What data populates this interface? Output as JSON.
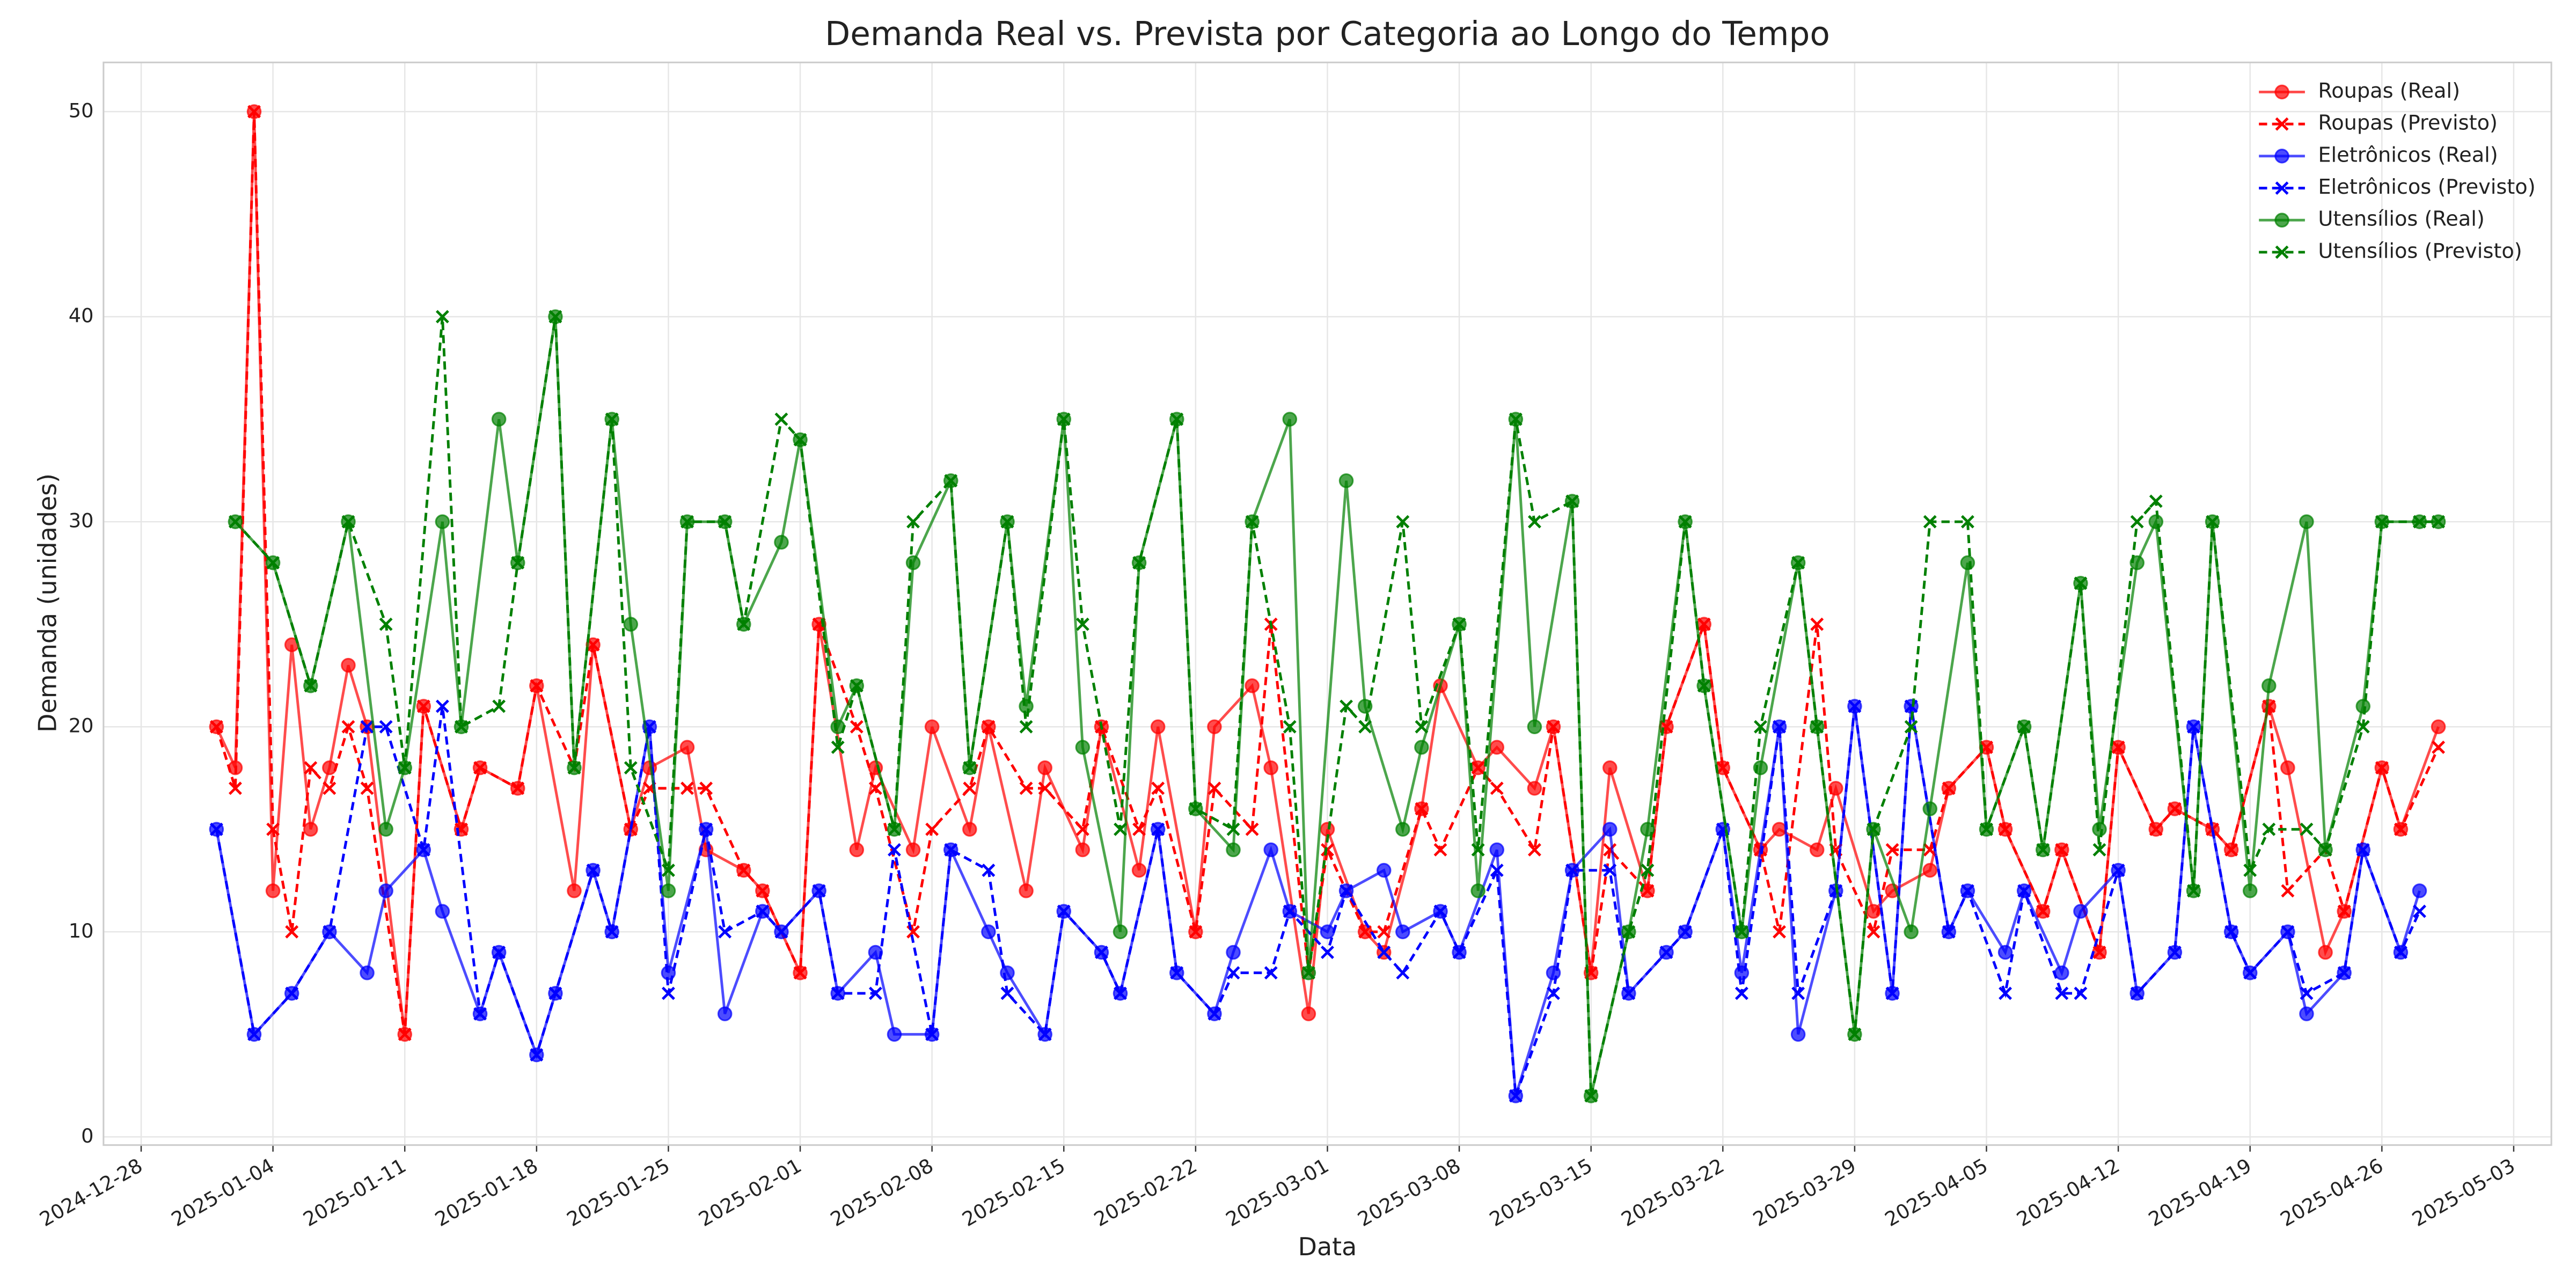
{
  "chart_data": {
    "type": "line",
    "title": "Demanda Real vs. Prevista por Categoria ao Longo do Tempo",
    "x_label": "Data",
    "y_label": "Demanda (unidades)",
    "xlim": [
      "2024-12-26",
      "2025-05-05"
    ],
    "xticks": [
      "2024-12-28",
      "2025-01-04",
      "2025-01-11",
      "2025-01-18",
      "2025-01-25",
      "2025-02-01",
      "2025-02-08",
      "2025-02-15",
      "2025-02-22",
      "2025-03-01",
      "2025-03-08",
      "2025-03-15",
      "2025-03-22",
      "2025-03-29",
      "2025-04-05",
      "2025-04-12",
      "2025-04-19",
      "2025-04-26",
      "2025-05-03"
    ],
    "ylim": [
      -0.4,
      52.4
    ],
    "yticks": [
      0,
      10,
      20,
      30,
      40,
      50
    ],
    "grid": true,
    "legend": "upper right",
    "series": [
      {
        "name": "Roupas (Real)",
        "color": "#ff0000",
        "linestyle": "solid",
        "marker": "o",
        "x": [
          "2025-01-01",
          "2025-01-02",
          "2025-01-03",
          "2025-01-04",
          "2025-01-05",
          "2025-01-06",
          "2025-01-07",
          "2025-01-08",
          "2025-01-09",
          "2025-01-11",
          "2025-01-12",
          "2025-01-14",
          "2025-01-15",
          "2025-01-17",
          "2025-01-18",
          "2025-01-20",
          "2025-01-21",
          "2025-01-23",
          "2025-01-24",
          "2025-01-26",
          "2025-01-27",
          "2025-01-29",
          "2025-01-30",
          "2025-02-01",
          "2025-02-02",
          "2025-02-04",
          "2025-02-05",
          "2025-02-07",
          "2025-02-08",
          "2025-02-10",
          "2025-02-11",
          "2025-02-13",
          "2025-02-14",
          "2025-02-16",
          "2025-02-17",
          "2025-02-19",
          "2025-02-20",
          "2025-02-22",
          "2025-02-23",
          "2025-02-25",
          "2025-02-26",
          "2025-02-28",
          "2025-03-01",
          "2025-03-03",
          "2025-03-04",
          "2025-03-06",
          "2025-03-07",
          "2025-03-09",
          "2025-03-10",
          "2025-03-12",
          "2025-03-13",
          "2025-03-15",
          "2025-03-16",
          "2025-03-18",
          "2025-03-19",
          "2025-03-21",
          "2025-03-22",
          "2025-03-24",
          "2025-03-25",
          "2025-03-27",
          "2025-03-28",
          "2025-03-30",
          "2025-03-31",
          "2025-04-02",
          "2025-04-03",
          "2025-04-05",
          "2025-04-06",
          "2025-04-08",
          "2025-04-09",
          "2025-04-11",
          "2025-04-12",
          "2025-04-14",
          "2025-04-15",
          "2025-04-17",
          "2025-04-18",
          "2025-04-20",
          "2025-04-21",
          "2025-04-23",
          "2025-04-24",
          "2025-04-26",
          "2025-04-27",
          "2025-04-29"
        ],
        "values": [
          20,
          18,
          50,
          12,
          24,
          15,
          18,
          23,
          20,
          5,
          21,
          15,
          18,
          17,
          22,
          12,
          24,
          15,
          18,
          19,
          14,
          13,
          12,
          8,
          25,
          14,
          18,
          14,
          20,
          15,
          20,
          12,
          18,
          14,
          20,
          13,
          20,
          10,
          20,
          22,
          18,
          6,
          15,
          10,
          9,
          16,
          22,
          18,
          19,
          17,
          20,
          8,
          18,
          12,
          20,
          25,
          18,
          14,
          15,
          14,
          17,
          11,
          12,
          13,
          17,
          19,
          15,
          11,
          14,
          9,
          19,
          15,
          16,
          15,
          14,
          21,
          18,
          9,
          11,
          18,
          15,
          20
        ]
      },
      {
        "name": "Roupas (Previsto)",
        "color": "#ff0000",
        "linestyle": "dashed",
        "marker": "x",
        "x": [
          "2025-01-01",
          "2025-01-02",
          "2025-01-03",
          "2025-01-04",
          "2025-01-05",
          "2025-01-06",
          "2025-01-07",
          "2025-01-08",
          "2025-01-09",
          "2025-01-11",
          "2025-01-12",
          "2025-01-14",
          "2025-01-15",
          "2025-01-17",
          "2025-01-18",
          "2025-01-20",
          "2025-01-21",
          "2025-01-23",
          "2025-01-24",
          "2025-01-26",
          "2025-01-27",
          "2025-01-29",
          "2025-01-30",
          "2025-02-01",
          "2025-02-02",
          "2025-02-04",
          "2025-02-05",
          "2025-02-07",
          "2025-02-08",
          "2025-02-10",
          "2025-02-11",
          "2025-02-13",
          "2025-02-14",
          "2025-02-16",
          "2025-02-17",
          "2025-02-19",
          "2025-02-20",
          "2025-02-22",
          "2025-02-23",
          "2025-02-25",
          "2025-02-26",
          "2025-02-28",
          "2025-03-01",
          "2025-03-03",
          "2025-03-04",
          "2025-03-06",
          "2025-03-07",
          "2025-03-09",
          "2025-03-10",
          "2025-03-12",
          "2025-03-13",
          "2025-03-15",
          "2025-03-16",
          "2025-03-18",
          "2025-03-19",
          "2025-03-21",
          "2025-03-22",
          "2025-03-24",
          "2025-03-25",
          "2025-03-27",
          "2025-03-28",
          "2025-03-30",
          "2025-03-31",
          "2025-04-02",
          "2025-04-03",
          "2025-04-05",
          "2025-04-06",
          "2025-04-08",
          "2025-04-09",
          "2025-04-11",
          "2025-04-12",
          "2025-04-14",
          "2025-04-15",
          "2025-04-17",
          "2025-04-18",
          "2025-04-20",
          "2025-04-21",
          "2025-04-23",
          "2025-04-24",
          "2025-04-26",
          "2025-04-27",
          "2025-04-29"
        ],
        "values": [
          20,
          17,
          50,
          15,
          10,
          18,
          17,
          20,
          17,
          5,
          21,
          15,
          18,
          17,
          22,
          18,
          24,
          15,
          17,
          17,
          17,
          13,
          12,
          8,
          25,
          20,
          17,
          10,
          15,
          17,
          20,
          17,
          17,
          15,
          20,
          15,
          17,
          10,
          17,
          15,
          25,
          8,
          14,
          10,
          10,
          16,
          14,
          18,
          17,
          14,
          20,
          8,
          14,
          12,
          20,
          25,
          18,
          14,
          10,
          25,
          14,
          10,
          14,
          14,
          17,
          19,
          15,
          11,
          14,
          9,
          19,
          15,
          16,
          15,
          14,
          21,
          12,
          14,
          11,
          18,
          15,
          19
        ]
      },
      {
        "name": "Eletrônicos (Real)",
        "color": "#0000ff",
        "linestyle": "solid",
        "marker": "o",
        "x": [
          "2025-01-01",
          "2025-01-03",
          "2025-01-05",
          "2025-01-07",
          "2025-01-09",
          "2025-01-10",
          "2025-01-12",
          "2025-01-13",
          "2025-01-15",
          "2025-01-16",
          "2025-01-18",
          "2025-01-19",
          "2025-01-21",
          "2025-01-22",
          "2025-01-24",
          "2025-01-25",
          "2025-01-27",
          "2025-01-28",
          "2025-01-30",
          "2025-01-31",
          "2025-02-02",
          "2025-02-03",
          "2025-02-05",
          "2025-02-06",
          "2025-02-08",
          "2025-02-09",
          "2025-02-11",
          "2025-02-12",
          "2025-02-14",
          "2025-02-15",
          "2025-02-17",
          "2025-02-18",
          "2025-02-20",
          "2025-02-21",
          "2025-02-23",
          "2025-02-24",
          "2025-02-26",
          "2025-02-27",
          "2025-03-01",
          "2025-03-02",
          "2025-03-04",
          "2025-03-05",
          "2025-03-07",
          "2025-03-08",
          "2025-03-10",
          "2025-03-11",
          "2025-03-13",
          "2025-03-14",
          "2025-03-16",
          "2025-03-17",
          "2025-03-19",
          "2025-03-20",
          "2025-03-22",
          "2025-03-23",
          "2025-03-25",
          "2025-03-26",
          "2025-03-28",
          "2025-03-29",
          "2025-03-31",
          "2025-04-01",
          "2025-04-03",
          "2025-04-04",
          "2025-04-06",
          "2025-04-07",
          "2025-04-09",
          "2025-04-10",
          "2025-04-12",
          "2025-04-13",
          "2025-04-15",
          "2025-04-16",
          "2025-04-18",
          "2025-04-19",
          "2025-04-21",
          "2025-04-22",
          "2025-04-24",
          "2025-04-25",
          "2025-04-27",
          "2025-04-28"
        ],
        "values": [
          15,
          5,
          7,
          10,
          8,
          12,
          14,
          11,
          6,
          9,
          4,
          7,
          13,
          10,
          20,
          8,
          15,
          6,
          11,
          10,
          12,
          7,
          9,
          5,
          5,
          14,
          10,
          8,
          5,
          11,
          9,
          7,
          15,
          8,
          6,
          9,
          14,
          11,
          10,
          12,
          13,
          10,
          11,
          9,
          14,
          2,
          8,
          13,
          15,
          7,
          9,
          10,
          15,
          8,
          20,
          5,
          12,
          21,
          7,
          21,
          10,
          12,
          9,
          12,
          8,
          11,
          13,
          7,
          9,
          20,
          10,
          8,
          10,
          6,
          8,
          14,
          9,
          12
        ]
      },
      {
        "name": "Eletrônicos (Previsto)",
        "color": "#0000ff",
        "linestyle": "dashed",
        "marker": "x",
        "x": [
          "2025-01-01",
          "2025-01-03",
          "2025-01-05",
          "2025-01-07",
          "2025-01-09",
          "2025-01-10",
          "2025-01-12",
          "2025-01-13",
          "2025-01-15",
          "2025-01-16",
          "2025-01-18",
          "2025-01-19",
          "2025-01-21",
          "2025-01-22",
          "2025-01-24",
          "2025-01-25",
          "2025-01-27",
          "2025-01-28",
          "2025-01-30",
          "2025-01-31",
          "2025-02-02",
          "2025-02-03",
          "2025-02-05",
          "2025-02-06",
          "2025-02-08",
          "2025-02-09",
          "2025-02-11",
          "2025-02-12",
          "2025-02-14",
          "2025-02-15",
          "2025-02-17",
          "2025-02-18",
          "2025-02-20",
          "2025-02-21",
          "2025-02-23",
          "2025-02-24",
          "2025-02-26",
          "2025-02-27",
          "2025-03-01",
          "2025-03-02",
          "2025-03-04",
          "2025-03-05",
          "2025-03-07",
          "2025-03-08",
          "2025-03-10",
          "2025-03-11",
          "2025-03-13",
          "2025-03-14",
          "2025-03-16",
          "2025-03-17",
          "2025-03-19",
          "2025-03-20",
          "2025-03-22",
          "2025-03-23",
          "2025-03-25",
          "2025-03-26",
          "2025-03-28",
          "2025-03-29",
          "2025-03-31",
          "2025-04-01",
          "2025-04-03",
          "2025-04-04",
          "2025-04-06",
          "2025-04-07",
          "2025-04-09",
          "2025-04-10",
          "2025-04-12",
          "2025-04-13",
          "2025-04-15",
          "2025-04-16",
          "2025-04-18",
          "2025-04-19",
          "2025-04-21",
          "2025-04-22",
          "2025-04-24",
          "2025-04-25",
          "2025-04-27",
          "2025-04-28"
        ],
        "values": [
          15,
          5,
          7,
          10,
          20,
          20,
          14,
          21,
          6,
          9,
          4,
          7,
          13,
          10,
          20,
          7,
          15,
          10,
          11,
          10,
          12,
          7,
          7,
          14,
          5,
          14,
          13,
          7,
          5,
          11,
          9,
          7,
          15,
          8,
          6,
          8,
          8,
          11,
          9,
          12,
          9,
          8,
          11,
          9,
          13,
          2,
          7,
          13,
          13,
          7,
          9,
          10,
          15,
          7,
          20,
          7,
          12,
          21,
          7,
          21,
          10,
          12,
          7,
          12,
          7,
          7,
          13,
          7,
          9,
          20,
          10,
          8,
          10,
          7,
          8,
          14,
          9,
          11
        ]
      },
      {
        "name": "Utensílios (Real)",
        "color": "#008000",
        "linestyle": "solid",
        "marker": "o",
        "x": [
          "2025-01-02",
          "2025-01-04",
          "2025-01-06",
          "2025-01-08",
          "2025-01-10",
          "2025-01-11",
          "2025-01-13",
          "2025-01-14",
          "2025-01-16",
          "2025-01-17",
          "2025-01-19",
          "2025-01-20",
          "2025-01-22",
          "2025-01-23",
          "2025-01-25",
          "2025-01-26",
          "2025-01-28",
          "2025-01-29",
          "2025-01-31",
          "2025-02-01",
          "2025-02-03",
          "2025-02-04",
          "2025-02-06",
          "2025-02-07",
          "2025-02-09",
          "2025-02-10",
          "2025-02-12",
          "2025-02-13",
          "2025-02-15",
          "2025-02-16",
          "2025-02-18",
          "2025-02-19",
          "2025-02-21",
          "2025-02-22",
          "2025-02-24",
          "2025-02-25",
          "2025-02-27",
          "2025-02-28",
          "2025-03-02",
          "2025-03-03",
          "2025-03-05",
          "2025-03-06",
          "2025-03-08",
          "2025-03-09",
          "2025-03-11",
          "2025-03-12",
          "2025-03-14",
          "2025-03-15",
          "2025-03-17",
          "2025-03-18",
          "2025-03-20",
          "2025-03-21",
          "2025-03-23",
          "2025-03-24",
          "2025-03-26",
          "2025-03-27",
          "2025-03-29",
          "2025-03-30",
          "2025-04-01",
          "2025-04-02",
          "2025-04-04",
          "2025-04-05",
          "2025-04-07",
          "2025-04-08",
          "2025-04-10",
          "2025-04-11",
          "2025-04-13",
          "2025-04-14",
          "2025-04-16",
          "2025-04-17",
          "2025-04-19",
          "2025-04-20",
          "2025-04-22",
          "2025-04-23",
          "2025-04-25",
          "2025-04-26",
          "2025-04-28",
          "2025-04-29"
        ],
        "values": [
          30,
          28,
          22,
          30,
          15,
          18,
          30,
          20,
          35,
          28,
          40,
          18,
          35,
          25,
          12,
          30,
          30,
          25,
          29,
          34,
          20,
          22,
          15,
          28,
          32,
          18,
          30,
          21,
          35,
          19,
          10,
          28,
          35,
          16,
          14,
          30,
          35,
          8,
          32,
          21,
          15,
          19,
          25,
          12,
          35,
          20,
          31,
          2,
          10,
          15,
          30,
          22,
          10,
          18,
          28,
          20,
          5,
          15,
          10,
          16,
          28,
          15,
          20,
          14,
          27,
          15,
          28,
          30,
          12,
          30,
          12,
          22,
          30,
          14,
          21,
          30,
          30,
          30
        ]
      },
      {
        "name": "Utensílios (Previsto)",
        "color": "#008000",
        "linestyle": "dashed",
        "marker": "x",
        "x": [
          "2025-01-02",
          "2025-01-04",
          "2025-01-06",
          "2025-01-08",
          "2025-01-10",
          "2025-01-11",
          "2025-01-13",
          "2025-01-14",
          "2025-01-16",
          "2025-01-17",
          "2025-01-19",
          "2025-01-20",
          "2025-01-22",
          "2025-01-23",
          "2025-01-25",
          "2025-01-26",
          "2025-01-28",
          "2025-01-29",
          "2025-01-31",
          "2025-02-01",
          "2025-02-03",
          "2025-02-04",
          "2025-02-06",
          "2025-02-07",
          "2025-02-09",
          "2025-02-10",
          "2025-02-12",
          "2025-02-13",
          "2025-02-15",
          "2025-02-16",
          "2025-02-18",
          "2025-02-19",
          "2025-02-21",
          "2025-02-22",
          "2025-02-24",
          "2025-02-25",
          "2025-02-27",
          "2025-02-28",
          "2025-03-02",
          "2025-03-03",
          "2025-03-05",
          "2025-03-06",
          "2025-03-08",
          "2025-03-09",
          "2025-03-11",
          "2025-03-12",
          "2025-03-14",
          "2025-03-15",
          "2025-03-17",
          "2025-03-18",
          "2025-03-20",
          "2025-03-21",
          "2025-03-23",
          "2025-03-24",
          "2025-03-26",
          "2025-03-27",
          "2025-03-29",
          "2025-03-30",
          "2025-04-01",
          "2025-04-02",
          "2025-04-04",
          "2025-04-05",
          "2025-04-07",
          "2025-04-08",
          "2025-04-10",
          "2025-04-11",
          "2025-04-13",
          "2025-04-14",
          "2025-04-16",
          "2025-04-17",
          "2025-04-19",
          "2025-04-20",
          "2025-04-22",
          "2025-04-23",
          "2025-04-25",
          "2025-04-26",
          "2025-04-28",
          "2025-04-29"
        ],
        "values": [
          30,
          28,
          22,
          30,
          25,
          18,
          40,
          20,
          21,
          28,
          40,
          18,
          35,
          18,
          13,
          30,
          30,
          25,
          35,
          34,
          19,
          22,
          15,
          30,
          32,
          18,
          30,
          20,
          35,
          25,
          15,
          28,
          35,
          16,
          15,
          30,
          20,
          8,
          21,
          20,
          30,
          20,
          25,
          14,
          35,
          30,
          31,
          2,
          10,
          13,
          30,
          22,
          10,
          20,
          28,
          20,
          5,
          15,
          20,
          30,
          30,
          15,
          20,
          14,
          27,
          14,
          30,
          31,
          12,
          30,
          13,
          15,
          15,
          14,
          20,
          30,
          30,
          30
        ]
      }
    ]
  }
}
